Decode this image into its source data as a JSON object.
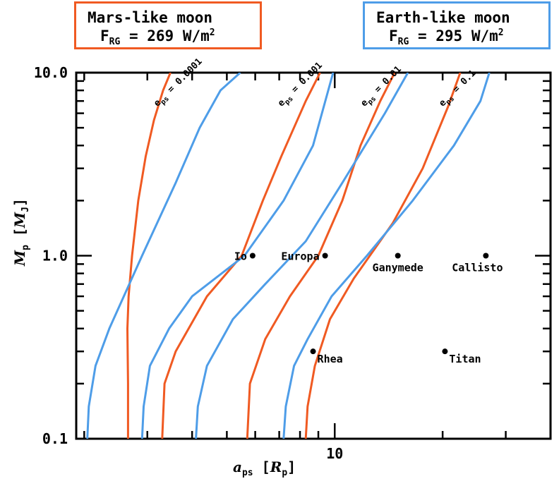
{
  "legend": {
    "mars": {
      "title": "Mars-like moon",
      "flux_label": "F",
      "flux_sub": "RG",
      "flux_value": "= 269 W/m",
      "flux_exp": "2",
      "color": "#f05a22"
    },
    "earth": {
      "title": "Earth-like moon",
      "flux_label": "F",
      "flux_sub": "RG",
      "flux_value": "= 295 W/m",
      "flux_exp": "2",
      "color": "#4e9de8"
    }
  },
  "axes": {
    "x_main": "a",
    "x_sub": "ps",
    "x_unit_open": " [",
    "x_unit": "R",
    "x_unit_sub": "p",
    "x_unit_close": "]",
    "y_main": "M",
    "y_sub": "p",
    "y_unit_open": " [",
    "y_unit": "M",
    "y_unit_sub": "J",
    "y_unit_close": "]"
  },
  "chart_data": {
    "type": "line",
    "x_scale": "log",
    "y_scale": "log",
    "xlim": [
      1.9,
      40
    ],
    "ylim": [
      0.1,
      10
    ],
    "x_tick_labels": [
      {
        "value": 10,
        "label": "10"
      }
    ],
    "y_tick_labels": [
      {
        "value": 0.1,
        "label": "0.1"
      },
      {
        "value": 1,
        "label": "1.0"
      },
      {
        "value": 10,
        "label": "10.0"
      }
    ],
    "grid": false,
    "series": [
      {
        "moon": "mars",
        "color": "#f05a22",
        "eps_label": "e",
        "eps_sub": "ps",
        "eps_value": " = 0.0001",
        "x": [
          2.65,
          2.65,
          2.64,
          2.66,
          2.72,
          2.83,
          2.97,
          3.13,
          3.32,
          3.48
        ],
        "y": [
          0.1,
          0.2,
          0.4,
          0.6,
          1.0,
          2.0,
          3.5,
          5.5,
          8.0,
          10.0
        ]
      },
      {
        "moon": "earth",
        "color": "#4e9de8",
        "eps_label": "e",
        "eps_sub": "ps",
        "eps_value": " = 0.0001",
        "x": [
          2.04,
          2.06,
          2.15,
          2.35,
          2.9,
          3.6,
          4.2,
          4.8,
          5.45
        ],
        "y": [
          0.1,
          0.15,
          0.25,
          0.4,
          1.0,
          2.5,
          5.0,
          8.0,
          10.0
        ]
      },
      {
        "moon": "mars",
        "color": "#f05a22",
        "eps_label": "e",
        "eps_sub": "ps",
        "eps_value": " = 0.001",
        "x": [
          3.3,
          3.35,
          3.6,
          4.4,
          5.5,
          6.3,
          7.1,
          8.3,
          9.1
        ],
        "y": [
          0.1,
          0.2,
          0.3,
          0.6,
          1.0,
          2.0,
          3.5,
          7.0,
          10.0
        ]
      },
      {
        "moon": "earth",
        "color": "#4e9de8",
        "eps_label": "e",
        "eps_sub": "ps",
        "eps_value": " = 0.001",
        "x": [
          2.9,
          2.93,
          3.05,
          3.45,
          4.0,
          5.6,
          7.2,
          8.7,
          9.9
        ],
        "y": [
          0.1,
          0.15,
          0.25,
          0.4,
          0.6,
          1.0,
          2.0,
          4.0,
          10.0
        ]
      },
      {
        "moon": "mars",
        "color": "#f05a22",
        "eps_label": "e",
        "eps_sub": "ps",
        "eps_value": " = 0.01",
        "x": [
          5.7,
          5.8,
          6.4,
          7.5,
          9.0,
          10.5,
          11.8,
          13.4,
          14.7
        ],
        "y": [
          0.1,
          0.2,
          0.35,
          0.6,
          1.0,
          2.0,
          4.0,
          7.0,
          10.0
        ]
      },
      {
        "moon": "earth",
        "color": "#4e9de8",
        "eps_label": "e",
        "eps_sub": "ps",
        "eps_value": " = 0.01",
        "x": [
          4.1,
          4.15,
          4.4,
          5.2,
          6.4,
          8.3,
          10.5,
          13.8,
          16.0
        ],
        "y": [
          0.1,
          0.15,
          0.25,
          0.45,
          0.7,
          1.2,
          2.5,
          6.0,
          10.0
        ]
      },
      {
        "moon": "mars",
        "color": "#f05a22",
        "eps_label": "e",
        "eps_sub": "ps",
        "eps_value": " = 0.1",
        "x": [
          8.3,
          8.4,
          8.8,
          9.7,
          11.3,
          14.5,
          17.6,
          20.7,
          22.4
        ],
        "y": [
          0.1,
          0.15,
          0.25,
          0.45,
          0.75,
          1.5,
          3.0,
          6.5,
          10.0
        ]
      },
      {
        "moon": "earth",
        "color": "#4e9de8",
        "eps_label": "e",
        "eps_sub": "ps",
        "eps_value": " = 0.1",
        "x": [
          7.2,
          7.3,
          7.7,
          8.4,
          9.8,
          12.3,
          16.5,
          21.5,
          25.5,
          27.0
        ],
        "y": [
          0.1,
          0.15,
          0.25,
          0.35,
          0.6,
          1.0,
          2.0,
          4.0,
          7.0,
          10.0
        ]
      }
    ],
    "curve_labels": [
      {
        "text": "e",
        "sub": "ps",
        "rest": " = 0.0001",
        "x": 3.2,
        "y": 6.5
      },
      {
        "text": "e",
        "sub": "ps",
        "rest": " = 0.001",
        "x": 7.1,
        "y": 6.5
      },
      {
        "text": "e",
        "sub": "ps",
        "rest": " = 0.01",
        "x": 12.1,
        "y": 6.5
      },
      {
        "text": "e",
        "sub": "ps",
        "rest": " = 0.1",
        "x": 20.0,
        "y": 6.5
      }
    ],
    "moons": [
      {
        "name": "Io",
        "x": 5.9,
        "y": 1.0,
        "label_pos": "left"
      },
      {
        "name": "Europa",
        "x": 9.4,
        "y": 1.0,
        "label_pos": "left"
      },
      {
        "name": "Ganymede",
        "x": 15.0,
        "y": 1.0,
        "label_pos": "below"
      },
      {
        "name": "Callisto",
        "x": 26.4,
        "y": 1.0,
        "label_pos": "below-left"
      },
      {
        "name": "Rhea",
        "x": 8.7,
        "y": 0.3,
        "label_pos": "below-right"
      },
      {
        "name": "Titan",
        "x": 20.3,
        "y": 0.3,
        "label_pos": "below-right"
      }
    ]
  }
}
